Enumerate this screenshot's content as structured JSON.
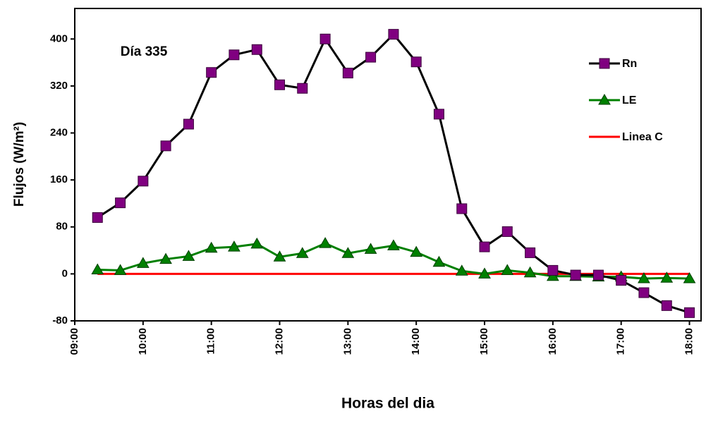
{
  "chart_data": {
    "type": "line",
    "x_label": "Horas del dia",
    "y_label": "Flujos (W/m²)",
    "annotation": "Día 335",
    "x": [
      9.333,
      9.667,
      10,
      10.333,
      10.667,
      11,
      11.333,
      11.667,
      12,
      12.333,
      12.667,
      13,
      13.333,
      13.667,
      14,
      14.333,
      14.667,
      15,
      15.333,
      15.667,
      16,
      16.333,
      16.667,
      17,
      17.333,
      17.667,
      18
    ],
    "series": [
      {
        "name": "Rn",
        "color": "#000000",
        "marker": "square",
        "marker_color": "#800080",
        "values": [
          96,
          121,
          158,
          218,
          255,
          343,
          373,
          382,
          322,
          316,
          400,
          342,
          369,
          408,
          361,
          272,
          111,
          46,
          72,
          36,
          6,
          -2,
          -2,
          -11,
          -32,
          -54,
          -66
        ]
      },
      {
        "name": "LE",
        "color": "#008000",
        "marker": "triangle",
        "marker_color": "#008000",
        "values": [
          7,
          6,
          18,
          25,
          30,
          44,
          46,
          51,
          29,
          35,
          52,
          35,
          42,
          48,
          37,
          20,
          5,
          0,
          6,
          2,
          -4,
          -4,
          -5,
          -5,
          -8,
          -7,
          -8
        ]
      },
      {
        "name": "Linea C",
        "color": "#ff0000",
        "marker": "none",
        "values": [
          0,
          0,
          0,
          0,
          0,
          0,
          0,
          0,
          0,
          0,
          0,
          0,
          0,
          0,
          0,
          0,
          0,
          0,
          0,
          0,
          0,
          0,
          0,
          0,
          0,
          0,
          0
        ]
      }
    ],
    "xlim": [
      9,
      18.17
    ],
    "xticks": [
      {
        "value": 9,
        "label": "09:00"
      },
      {
        "value": 10,
        "label": "10:00"
      },
      {
        "value": 11,
        "label": "11:00"
      },
      {
        "value": 12,
        "label": "12:00"
      },
      {
        "value": 13,
        "label": "13:00"
      },
      {
        "value": 14,
        "label": "14:00"
      },
      {
        "value": 15,
        "label": "15:00"
      },
      {
        "value": 16,
        "label": "16:00"
      },
      {
        "value": 17,
        "label": "17:00"
      },
      {
        "value": 18,
        "label": "18:00"
      }
    ],
    "ylim": [
      -80,
      452
    ],
    "yticks": [
      -80,
      0,
      80,
      160,
      240,
      320,
      400
    ],
    "grid": false,
    "legend": "right"
  }
}
